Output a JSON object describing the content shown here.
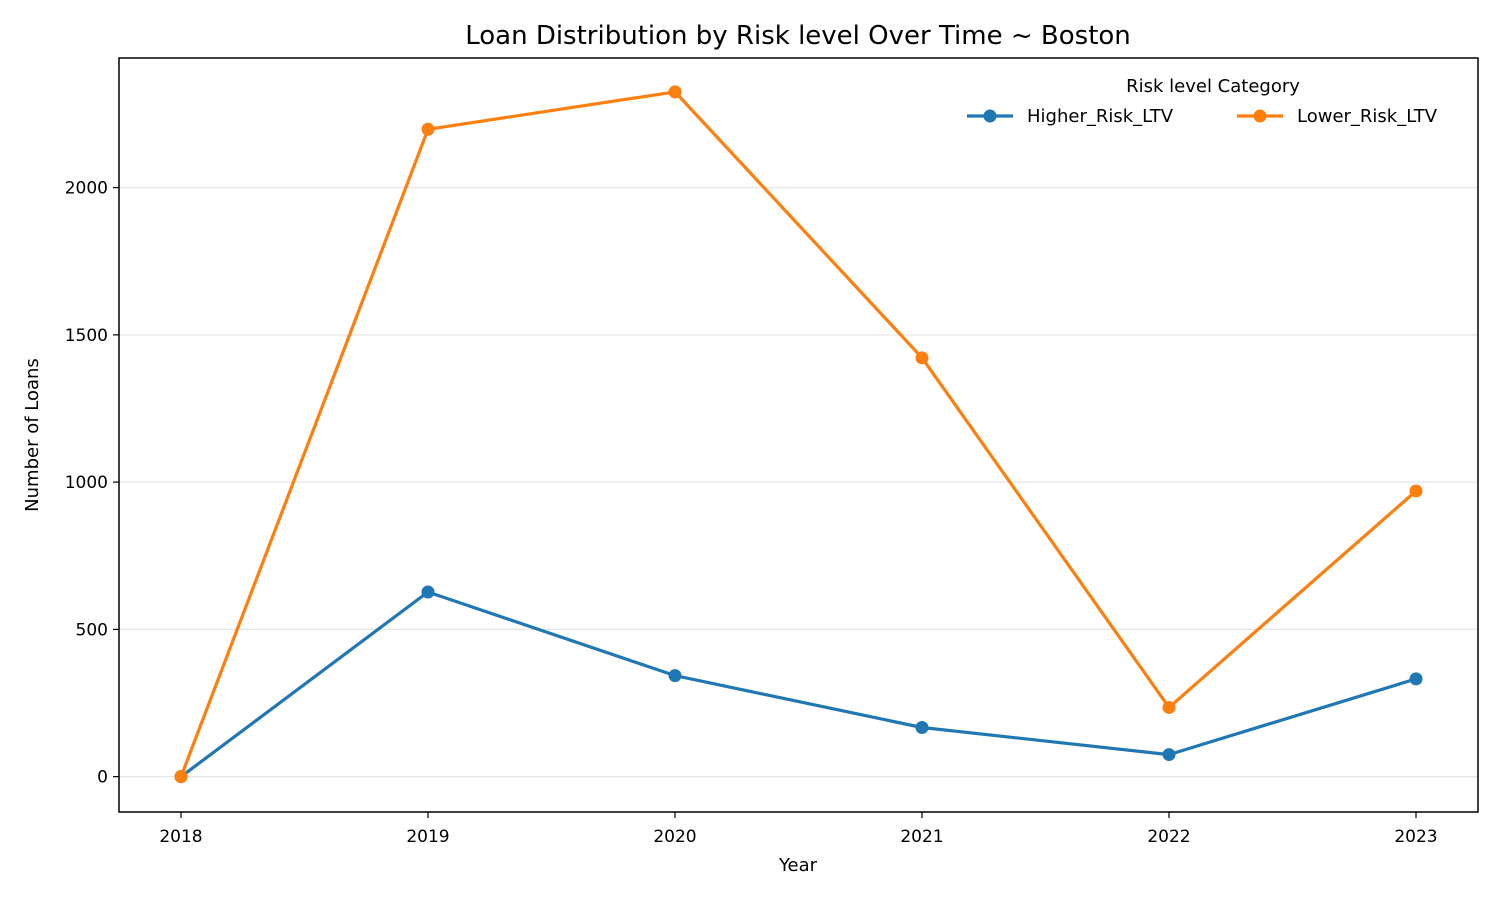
{
  "chart_data": {
    "type": "line",
    "title": "Loan Distribution by Risk level Over Time ~ Boston",
    "xlabel": "Year",
    "ylabel": "Number of Loans",
    "x": [
      "2018",
      "2019",
      "2020",
      "2021",
      "2022",
      "2023"
    ],
    "ylim": [
      -120,
      2440
    ],
    "yticks": [
      0,
      500,
      1000,
      1500,
      2000
    ],
    "grid": "horizontal",
    "legend": {
      "title": "Risk level Category",
      "placement": "top-right"
    },
    "series": [
      {
        "name": "Higher_Risk_LTV",
        "color": "#1f77b4",
        "values": [
          0,
          627,
          343,
          167,
          75,
          332
        ]
      },
      {
        "name": "Lower_Risk_LTV",
        "color": "#ff7f0e",
        "values": [
          0,
          2198,
          2325,
          1422,
          235,
          970
        ]
      }
    ]
  }
}
